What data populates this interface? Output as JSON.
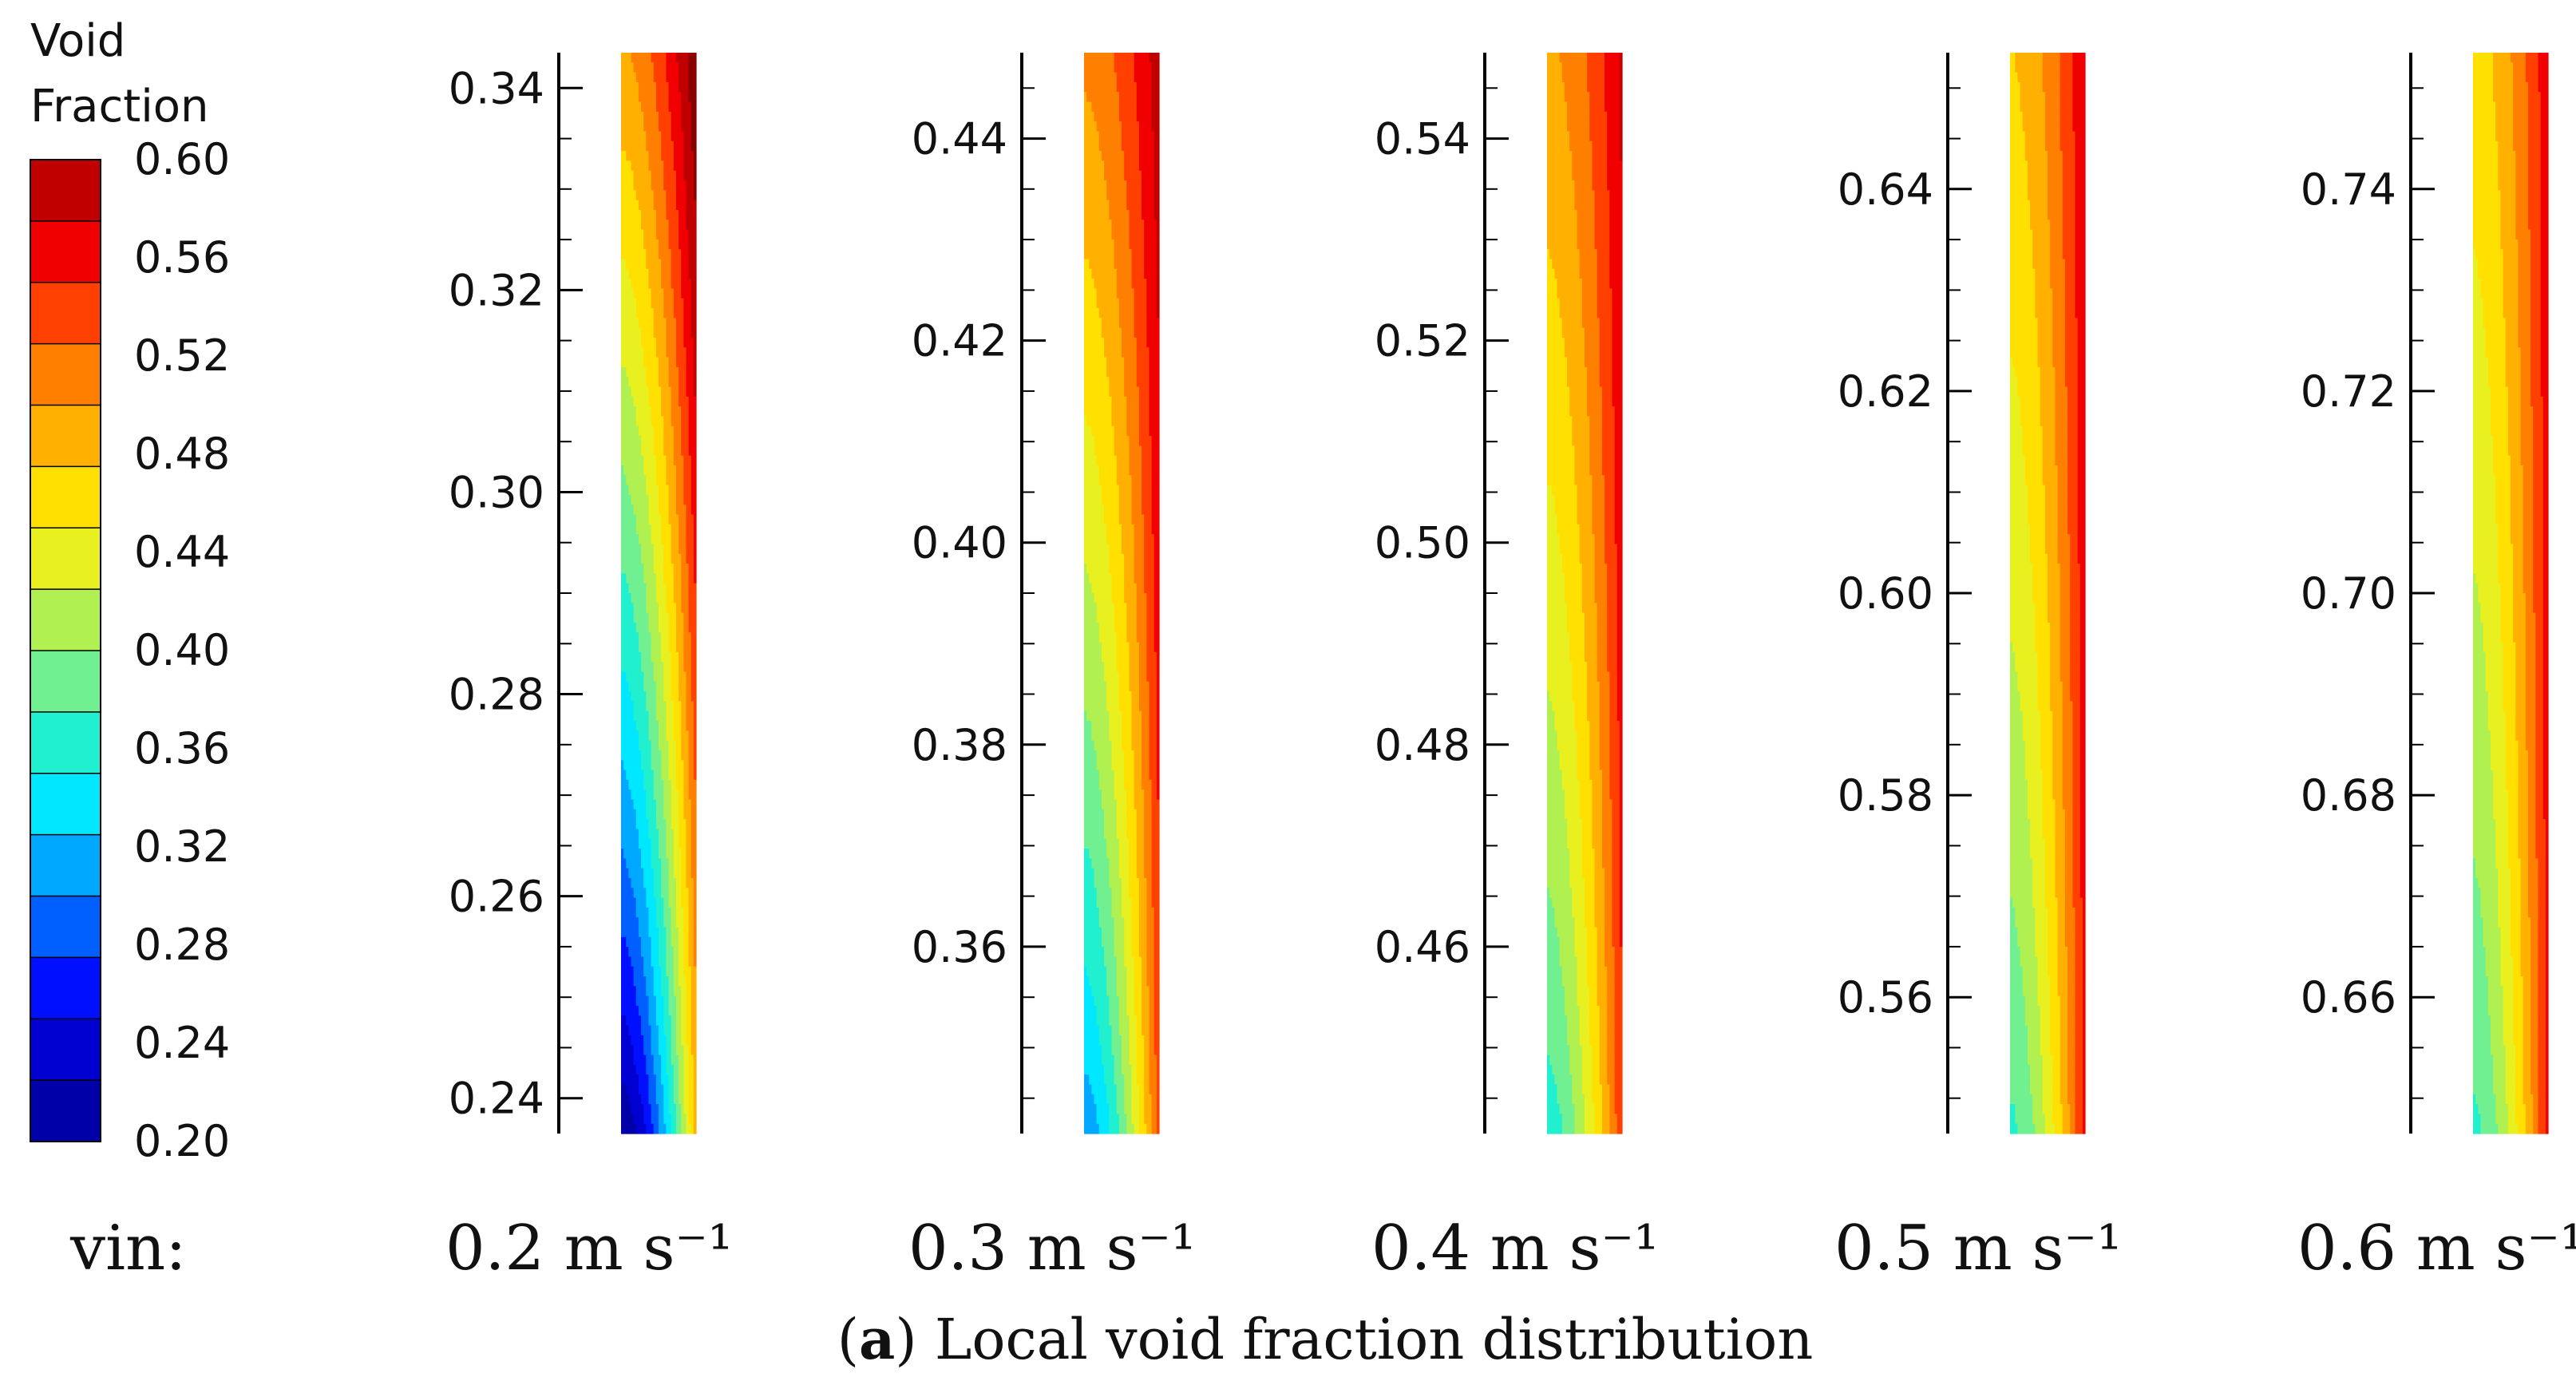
{
  "figure": {
    "legend_title": "Void\nFraction",
    "vin_label": "vin:",
    "caption_letter": "a",
    "caption_text": " Local void fraction distribution"
  },
  "colorbar": {
    "ticks": [
      "0.60",
      "0.56",
      "0.52",
      "0.48",
      "0.44",
      "0.40",
      "0.36",
      "0.32",
      "0.28",
      "0.24",
      "0.20"
    ],
    "min": 0.2,
    "max": 0.6,
    "levels": 16,
    "colors": [
      "#000080",
      "#0000a8",
      "#0000d0",
      "#0010ff",
      "#0060ff",
      "#00a8ff",
      "#00e8ff",
      "#20f0d0",
      "#70f090",
      "#b0f050",
      "#e8f020",
      "#ffe000",
      "#ffb000",
      "#ff8000",
      "#ff4000",
      "#f00000",
      "#c00000",
      "#880000"
    ]
  },
  "chart_data": [
    {
      "type": "heatmap",
      "title": "0.2 m s⁻¹",
      "velocity": "0.2 m s⁻¹",
      "ylabel": "",
      "yticks": [
        "0.24",
        "0.26",
        "0.28",
        "0.30",
        "0.32",
        "0.34"
      ],
      "ylim": [
        0.2365,
        0.3435
      ],
      "wall_void_fraction": 0.47,
      "field": {
        "left_bottom": 0.21,
        "left_top": 0.49,
        "right_bottom": 0.48,
        "right_top": 0.61
      }
    },
    {
      "type": "heatmap",
      "title": "0.3 m s⁻¹",
      "velocity": "0.3 m s⁻¹",
      "ylabel": "",
      "yticks": [
        "0.36",
        "0.38",
        "0.40",
        "0.42",
        "0.44"
      ],
      "ylim": [
        0.3415,
        0.4485
      ],
      "field": {
        "left_bottom": 0.31,
        "left_top": 0.5,
        "right_bottom": 0.53,
        "right_top": 0.58
      }
    },
    {
      "type": "heatmap",
      "title": "0.4 m s⁻¹",
      "velocity": "0.4 m s⁻¹",
      "ylabel": "",
      "yticks": [
        "0.46",
        "0.48",
        "0.50",
        "0.52",
        "0.54"
      ],
      "ylim": [
        0.4415,
        0.5485
      ],
      "field": {
        "left_bottom": 0.36,
        "left_top": 0.49,
        "right_bottom": 0.54,
        "right_top": 0.57
      }
    },
    {
      "type": "heatmap",
      "title": "0.5 m s⁻¹",
      "velocity": "0.5 m s⁻¹",
      "ylabel": "",
      "yticks": [
        "0.56",
        "0.58",
        "0.60",
        "0.62",
        "0.64"
      ],
      "ylim": [
        0.5465,
        0.6535
      ],
      "field": {
        "left_bottom": 0.37,
        "left_top": 0.47,
        "right_bottom": 0.55,
        "right_top": 0.565
      }
    },
    {
      "type": "heatmap",
      "title": "0.6 m s⁻¹",
      "velocity": "0.6 m s⁻¹",
      "ylabel": "",
      "yticks": [
        "0.66",
        "0.68",
        "0.70",
        "0.72",
        "0.74"
      ],
      "ylim": [
        0.6465,
        0.7535
      ],
      "field": {
        "left_bottom": 0.37,
        "left_top": 0.46,
        "right_bottom": 0.55,
        "right_top": 0.56
      }
    }
  ]
}
